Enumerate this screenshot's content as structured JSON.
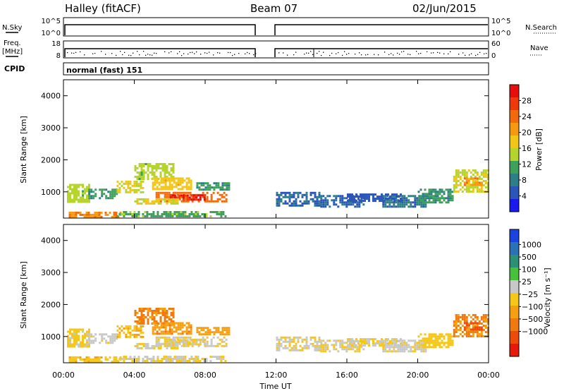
{
  "header": {
    "title": "Halley (fitACF)",
    "beam": "Beam 07",
    "date": "02/Jun/2015"
  },
  "summary": {
    "nsky_label": "N.Sky",
    "nsky_ticks": [
      "10^5",
      "10^0"
    ],
    "nsearch_label": "N.Search",
    "nsearch_ticks": [
      "10^5",
      "10^0"
    ],
    "freq_label_1": "Freq.",
    "freq_label_2": "[MHz]",
    "freq_ticks": [
      "18",
      "8"
    ],
    "nave_label": "Nave",
    "nave_ticks": [
      "60",
      "0"
    ],
    "cpid_label": "CPID",
    "cpid_text": "normal (fast) 151"
  },
  "axes": {
    "xlabel": "Time UT",
    "x_ticks": [
      "00:00",
      "04:00",
      "08:00",
      "12:00",
      "16:00",
      "20:00",
      "00:00"
    ],
    "ylabel": "Slant Range [km]",
    "y_ticks": [
      "1000",
      "2000",
      "3000",
      "4000"
    ]
  },
  "power_scale": {
    "label": "Power [dB]",
    "ticks": [
      "4",
      "8",
      "12",
      "16",
      "20",
      "24",
      "28"
    ],
    "colors": [
      "#1a1aee",
      "#2b55b8",
      "#2f7e86",
      "#3ea05a",
      "#b5d52d",
      "#f2c618",
      "#f59a10",
      "#f26a0c",
      "#ee3a0a",
      "#e60d0d"
    ]
  },
  "velocity_scale": {
    "label": "Velocity [m s⁻¹]",
    "ticks": [
      "1000",
      "500",
      "100",
      "25",
      "−25",
      "−100",
      "−500",
      "−1000"
    ],
    "colors": [
      "#1a44dd",
      "#2a72b5",
      "#2d8f76",
      "#49c03b",
      "#c8c8c8",
      "#f5c718",
      "#f5a013",
      "#f07a0f",
      "#ec4b0c",
      "#e61a0a"
    ]
  },
  "chart_data": [
    {
      "type": "heatmap",
      "title": "Power [dB]",
      "xlabel": "Time UT",
      "ylabel": "Slant Range [km]",
      "x_range_hours": [
        0,
        24
      ],
      "y_range_km": [
        180,
        4500
      ],
      "c_range": [
        0,
        32
      ],
      "regions": [
        {
          "t0": 0.2,
          "t1": 1.4,
          "r0": 700,
          "r1": 1250,
          "c": 14
        },
        {
          "t0": 1.4,
          "t1": 3.0,
          "r0": 800,
          "r1": 1100,
          "c": 10
        },
        {
          "t0": 0.3,
          "t1": 3.2,
          "r0": 240,
          "r1": 380,
          "c": 22
        },
        {
          "t0": 3.0,
          "t1": 9.2,
          "r0": 250,
          "r1": 400,
          "c": 12
        },
        {
          "t0": 3.0,
          "t1": 4.5,
          "r0": 1000,
          "r1": 1350,
          "c": 16
        },
        {
          "t0": 4.0,
          "t1": 6.2,
          "r0": 1400,
          "r1": 1900,
          "c": 14
        },
        {
          "t0": 5.0,
          "t1": 7.2,
          "r0": 1100,
          "r1": 1450,
          "c": 18
        },
        {
          "t0": 5.2,
          "t1": 9.2,
          "r0": 680,
          "r1": 1000,
          "c": 24
        },
        {
          "t0": 6.0,
          "t1": 8.0,
          "r0": 740,
          "r1": 920,
          "c": 29
        },
        {
          "t0": 4.0,
          "t1": 6.5,
          "r0": 650,
          "r1": 800,
          "c": 16
        },
        {
          "t0": 7.5,
          "t1": 9.3,
          "r0": 1050,
          "r1": 1300,
          "c": 10
        },
        {
          "t0": 12.0,
          "t1": 14.5,
          "r0": 600,
          "r1": 1000,
          "c": 6
        },
        {
          "t0": 14.5,
          "t1": 17.0,
          "r0": 550,
          "r1": 900,
          "c": 6
        },
        {
          "t0": 18.0,
          "t1": 20.5,
          "r0": 550,
          "r1": 900,
          "c": 7
        },
        {
          "t0": 20.0,
          "t1": 22.0,
          "r0": 700,
          "r1": 1100,
          "c": 10
        },
        {
          "t0": 22.0,
          "t1": 24.0,
          "r0": 1000,
          "r1": 1700,
          "c": 16
        },
        {
          "t0": 22.6,
          "t1": 23.6,
          "r0": 1200,
          "r1": 1450,
          "c": 22
        },
        {
          "t0": 16.0,
          "t1": 19.0,
          "r0": 700,
          "r1": 950,
          "c": 5
        }
      ]
    },
    {
      "type": "heatmap",
      "title": "Velocity [m s⁻¹]",
      "xlabel": "Time UT",
      "ylabel": "Slant Range [km]",
      "x_range_hours": [
        0,
        24
      ],
      "y_range_km": [
        180,
        4500
      ],
      "c_range": [
        -1000,
        1000
      ],
      "regions": [
        {
          "t0": 0.2,
          "t1": 1.4,
          "r0": 700,
          "r1": 1250,
          "c": -60
        },
        {
          "t0": 1.4,
          "t1": 3.0,
          "r0": 800,
          "r1": 1100,
          "c": 60
        },
        {
          "t0": 0.3,
          "t1": 3.2,
          "r0": 240,
          "r1": 380,
          "c": -150
        },
        {
          "t0": 3.0,
          "t1": 9.2,
          "r0": 250,
          "r1": 400,
          "c": 0
        },
        {
          "t0": 3.0,
          "t1": 4.5,
          "r0": 1000,
          "r1": 1350,
          "c": -200
        },
        {
          "t0": 4.0,
          "t1": 6.2,
          "r0": 1400,
          "r1": 1900,
          "c": -450
        },
        {
          "t0": 5.0,
          "t1": 7.2,
          "r0": 1100,
          "r1": 1450,
          "c": -350
        },
        {
          "t0": 5.2,
          "t1": 9.2,
          "r0": 680,
          "r1": 1000,
          "c": 0
        },
        {
          "t0": 6.0,
          "t1": 8.0,
          "r0": 740,
          "r1": 920,
          "c": -20
        },
        {
          "t0": 4.0,
          "t1": 6.5,
          "r0": 650,
          "r1": 800,
          "c": 0
        },
        {
          "t0": 7.5,
          "t1": 9.3,
          "r0": 1050,
          "r1": 1300,
          "c": -300
        },
        {
          "t0": 12.0,
          "t1": 14.5,
          "r0": 600,
          "r1": 1000,
          "c": 0
        },
        {
          "t0": 14.5,
          "t1": 17.0,
          "r0": 550,
          "r1": 900,
          "c": 0
        },
        {
          "t0": 18.0,
          "t1": 20.5,
          "r0": 550,
          "r1": 900,
          "c": 40
        },
        {
          "t0": 20.0,
          "t1": 22.0,
          "r0": 700,
          "r1": 1100,
          "c": -80
        },
        {
          "t0": 22.0,
          "t1": 24.0,
          "r0": 1000,
          "r1": 1700,
          "c": -400
        },
        {
          "t0": 22.6,
          "t1": 23.6,
          "r0": 1200,
          "r1": 1450,
          "c": -650
        },
        {
          "t0": 16.0,
          "t1": 19.0,
          "r0": 700,
          "r1": 950,
          "c": 0
        }
      ]
    }
  ]
}
